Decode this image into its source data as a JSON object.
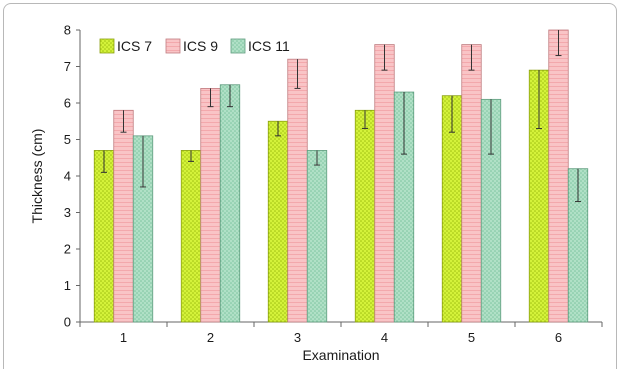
{
  "chart_data": {
    "type": "bar",
    "title": "",
    "xlabel": "Examination",
    "ylabel": "Thickness (cm)",
    "categories": [
      "1",
      "2",
      "3",
      "4",
      "5",
      "6"
    ],
    "ylim": [
      0,
      8
    ],
    "yticks": [
      "0",
      "1",
      "2",
      "3",
      "4",
      "5",
      "6",
      "7",
      "8"
    ],
    "grid": false,
    "legend": "top-left",
    "series": [
      {
        "name": "ICS 7",
        "color": "#ccee22",
        "values": [
          4.7,
          4.7,
          5.5,
          5.8,
          6.2,
          6.9
        ],
        "err_low": [
          4.1,
          4.4,
          5.1,
          5.3,
          5.2,
          5.3
        ],
        "err_high": [
          4.7,
          4.7,
          5.5,
          5.8,
          6.2,
          6.9
        ]
      },
      {
        "name": "ICS 9",
        "color": "#f7b8bc",
        "values": [
          5.8,
          6.4,
          7.2,
          7.6,
          7.6,
          8.0
        ],
        "err_low": [
          5.2,
          5.9,
          6.4,
          6.9,
          6.9,
          7.3
        ],
        "err_high": [
          5.8,
          6.4,
          7.2,
          7.6,
          7.6,
          8.0
        ]
      },
      {
        "name": "ICS 11",
        "color": "#a3d9bd",
        "values": [
          5.1,
          6.5,
          4.7,
          6.3,
          6.1,
          4.2
        ],
        "err_low": [
          3.7,
          5.9,
          4.3,
          4.6,
          4.6,
          3.3
        ],
        "err_high": [
          5.1,
          6.5,
          4.7,
          6.3,
          6.1,
          4.2
        ]
      }
    ]
  }
}
